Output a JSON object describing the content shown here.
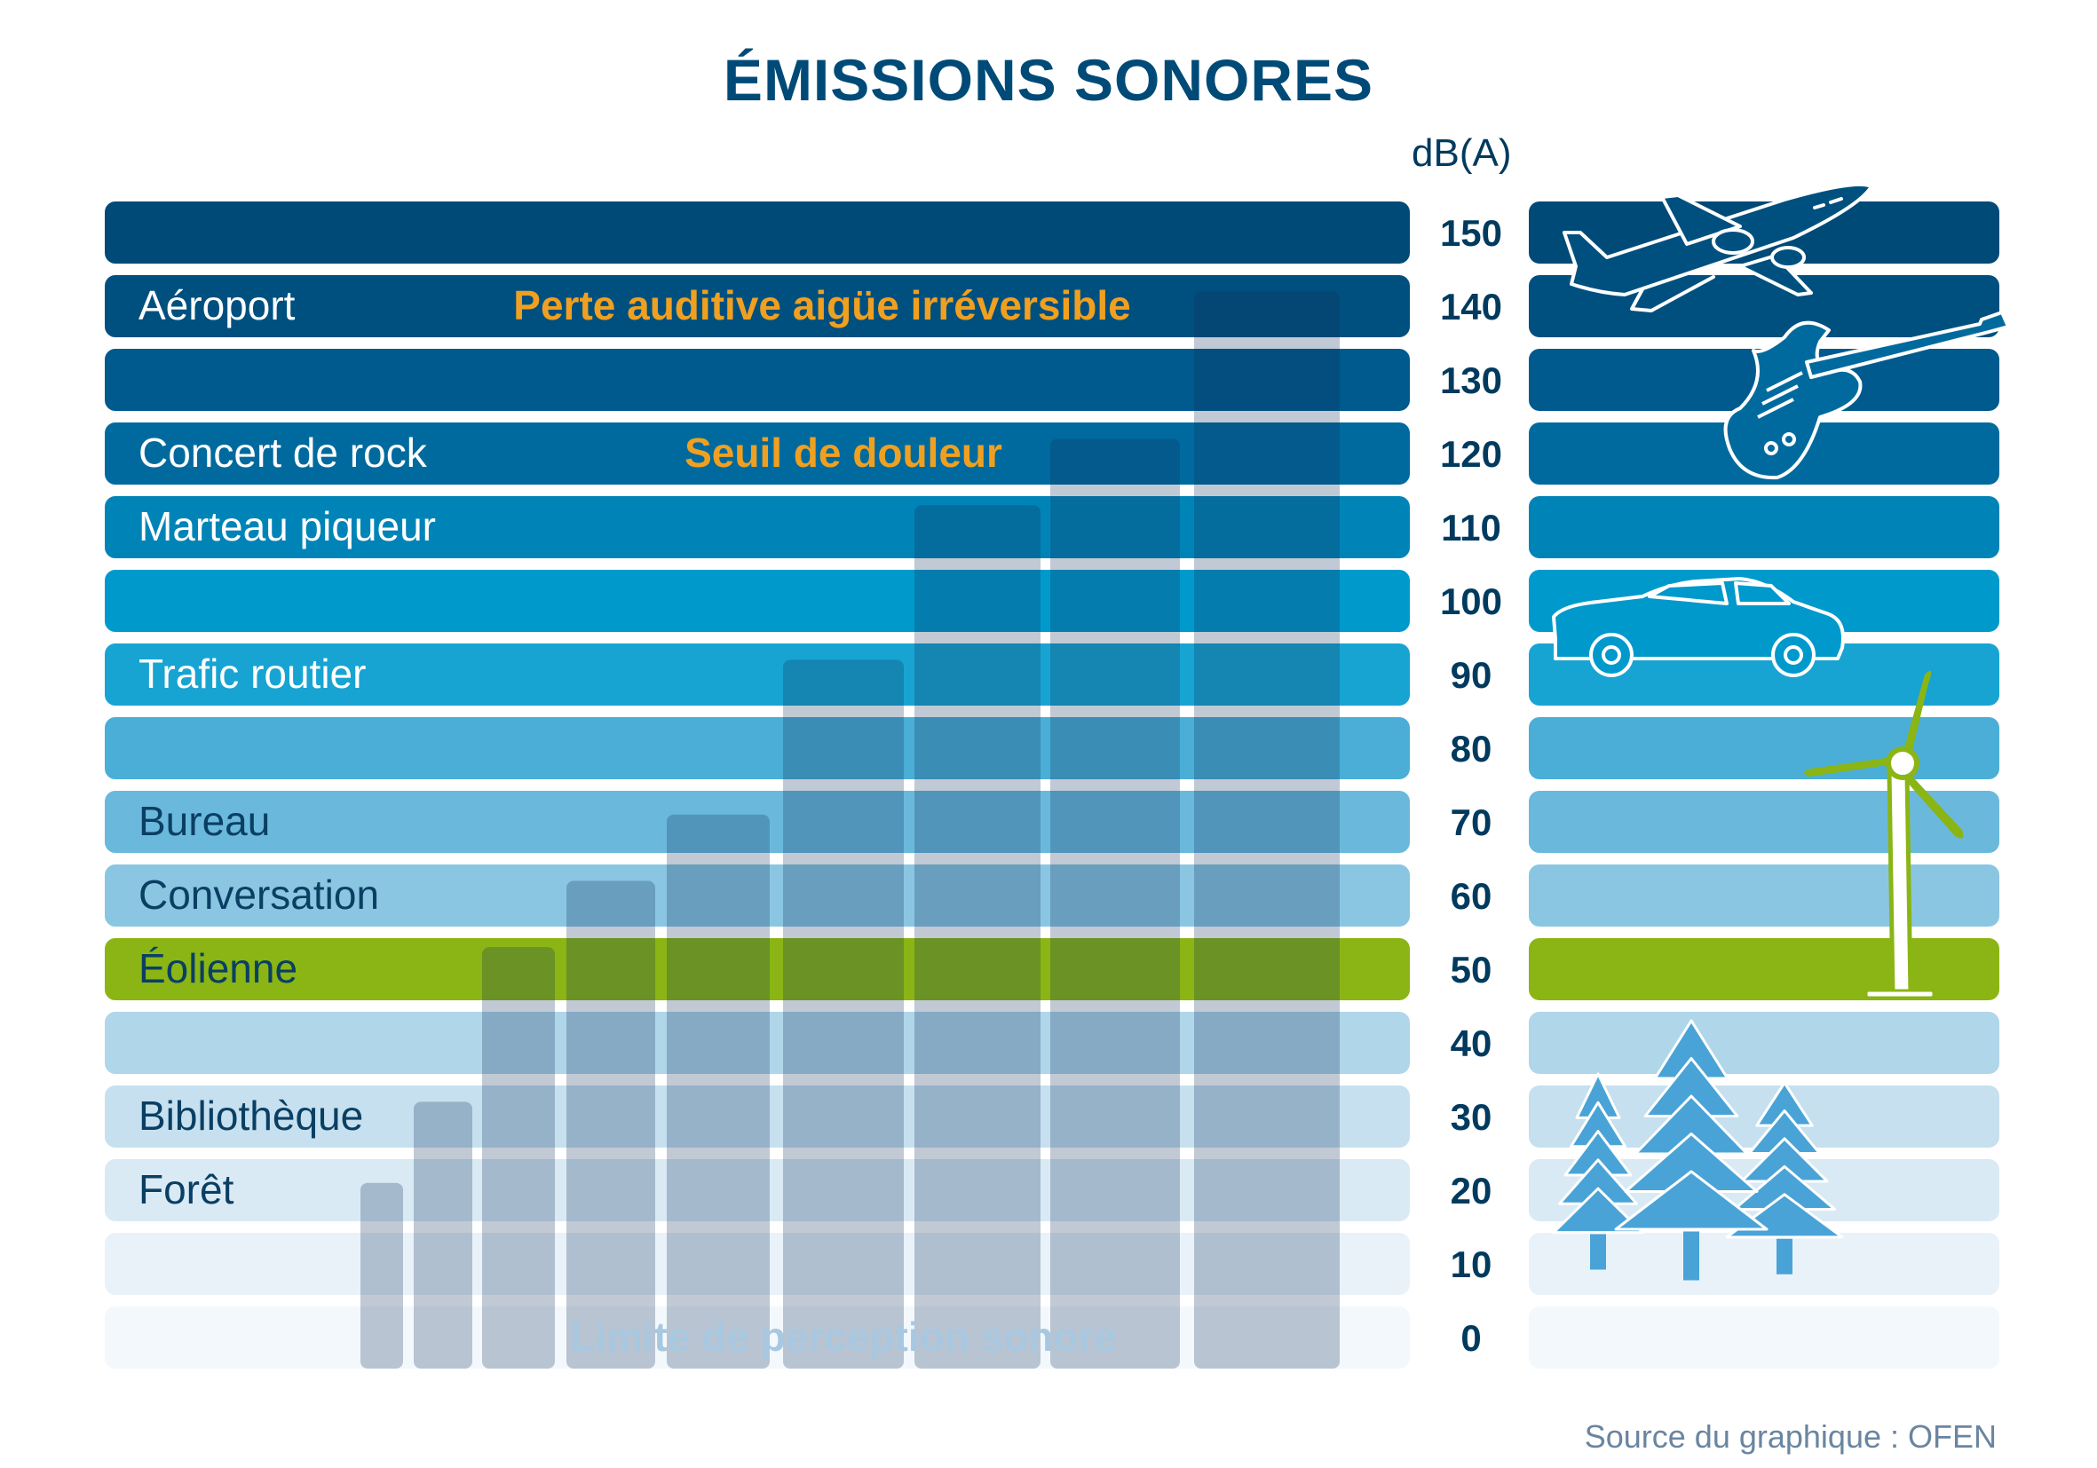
{
  "title": "ÉMISSIONS SONORES",
  "source": "Source du graphique : OFEN",
  "colors": {
    "title": "#004a77",
    "band_text_dark": "#003e62",
    "band_text_light": "#ffffff",
    "warning": "#f0a020",
    "perception_label": "#a8c7e0",
    "wind_green": "#8ab514",
    "tree_blue": "#4aa3d6"
  },
  "chart_data": {
    "type": "bar",
    "ylabel": "dB(A)",
    "ylim": [
      0,
      150
    ],
    "yticks": [
      150,
      140,
      130,
      120,
      110,
      100,
      90,
      80,
      70,
      60,
      50,
      40,
      30,
      20,
      10,
      0
    ],
    "bands": [
      {
        "db": 150,
        "label": "",
        "color": "#004a77",
        "text_color": "#ffffff"
      },
      {
        "db": 140,
        "label": "Aéroport",
        "color": "#00507f",
        "text_color": "#ffffff"
      },
      {
        "db": 130,
        "label": "",
        "color": "#005a8d",
        "text_color": "#ffffff"
      },
      {
        "db": 120,
        "label": "Concert de rock",
        "color": "#006a9e",
        "text_color": "#ffffff"
      },
      {
        "db": 110,
        "label": "Marteau piqueur",
        "color": "#0084b7",
        "text_color": "#ffffff"
      },
      {
        "db": 100,
        "label": "",
        "color": "#0099cc",
        "text_color": "#ffffff"
      },
      {
        "db": 90,
        "label": "Trafic routier",
        "color": "#18a4d2",
        "text_color": "#ffffff"
      },
      {
        "db": 80,
        "label": "",
        "color": "#4aaed6",
        "text_color": "#ffffff"
      },
      {
        "db": 70,
        "label": "Bureau",
        "color": "#6ab9dc",
        "text_color": "#0a3f63"
      },
      {
        "db": 60,
        "label": "Conversation",
        "color": "#8ac6e2",
        "text_color": "#0a3f63"
      },
      {
        "db": 50,
        "label": "Éolienne",
        "color": "#8ab514",
        "text_color": "#0a3f63"
      },
      {
        "db": 40,
        "label": "",
        "color": "#b0d6ea",
        "text_color": "#0a3f63"
      },
      {
        "db": 30,
        "label": "Bibliothèque",
        "color": "#c6e0ef",
        "text_color": "#0a3f63"
      },
      {
        "db": 20,
        "label": "Forêt",
        "color": "#d9eaf5",
        "text_color": "#0a3f63"
      },
      {
        "db": 10,
        "label": "",
        "color": "#e9f2f9",
        "text_color": "#0a3f63"
      },
      {
        "db": 0,
        "label": "",
        "color": "#f3f8fc",
        "text_color": "#0a3f63"
      }
    ],
    "thresholds": [
      {
        "db": 140,
        "label": "Perte auditive aigüe irréversible"
      },
      {
        "db": 120,
        "label": "Seuil de douleur"
      },
      {
        "db": 0,
        "label": "Limite de perception sonore"
      }
    ],
    "bars": [
      21,
      32,
      53,
      62,
      71,
      92,
      113,
      122,
      142
    ],
    "icons": [
      {
        "name": "airplane-icon",
        "db": 145
      },
      {
        "name": "guitar-icon",
        "db": 125
      },
      {
        "name": "car-icon",
        "db": 95
      },
      {
        "name": "wind-turbine-icon",
        "db": 65
      },
      {
        "name": "trees-icon",
        "db": 25
      }
    ]
  }
}
